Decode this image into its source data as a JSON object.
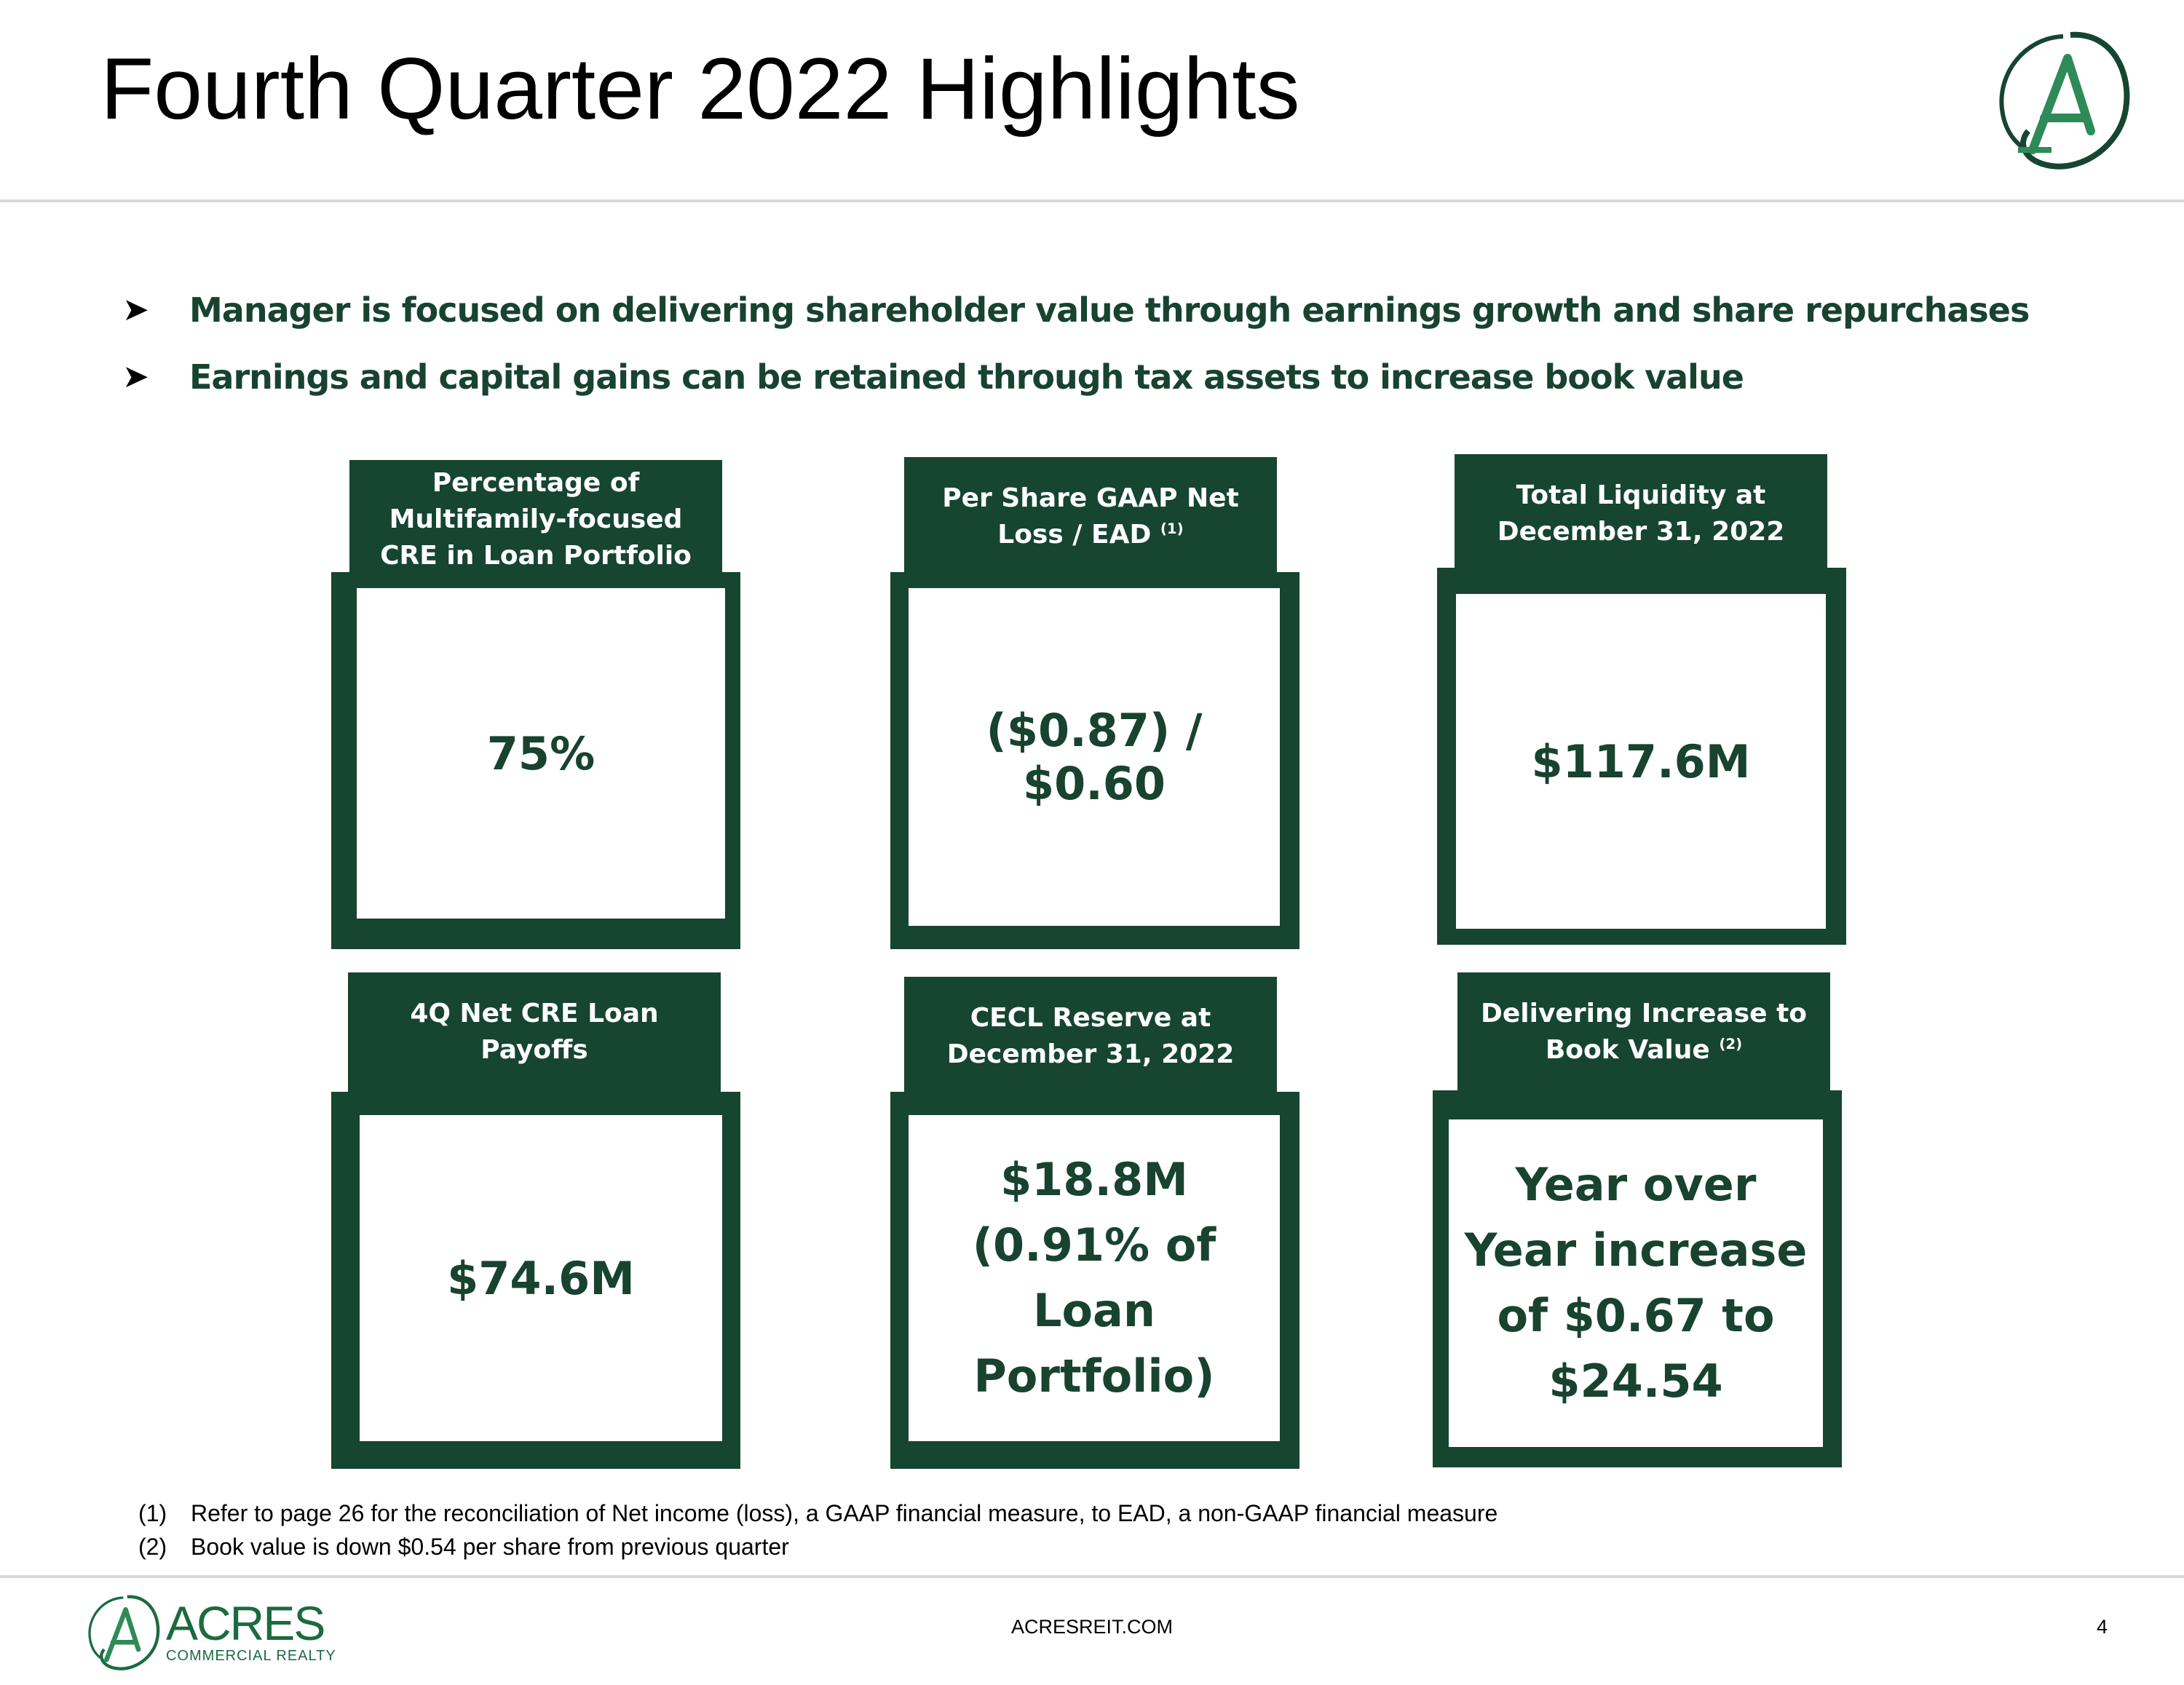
{
  "header": {
    "title": "Fourth Quarter 2022 Highlights"
  },
  "bullets": [
    {
      "text": "Manager is focused on delivering shareholder value through earnings growth and share repurchases"
    },
    {
      "text": "Earnings and capital gains can be retained through tax assets to increase book value"
    }
  ],
  "cards": [
    {
      "header": "Percentage of Multifamily-focused CRE in Loan Portfolio",
      "value": "75%"
    },
    {
      "header": "Per Share GAAP Net Loss / EAD",
      "header_sup": "(1)",
      "value": "($0.87) / $0.60"
    },
    {
      "header": "Total Liquidity at December 31, 2022",
      "value": "$117.6M"
    },
    {
      "header": "4Q Net CRE Loan Payoffs",
      "value": "$74.6M"
    },
    {
      "header": "CECL Reserve at December 31, 2022",
      "value": "$18.8M (0.91% of Loan Portfolio)"
    },
    {
      "header": "Delivering Increase to Book Value",
      "header_sup": "(2)",
      "value": "Year over Year increase of $0.67 to $24.54"
    }
  ],
  "footnotes": [
    {
      "num": "(1)",
      "text": "Refer to page 26 for the reconciliation of Net income (loss), a GAAP financial measure, to EAD, a non-GAAP financial measure"
    },
    {
      "num": "(2)",
      "text": "Book value is down $0.54 per share from previous quarter"
    }
  ],
  "footer": {
    "logo_name": "ACRES",
    "logo_tagline": "COMMERCIAL REALTY",
    "website": "ACRESREIT.COM",
    "page_number": "4"
  },
  "colors": {
    "brand_green": "#164530",
    "logo_green": "#1b6b40"
  },
  "icons": {
    "bullet": "arrowhead-bullet-icon",
    "logo": "acres-a-logo-icon"
  }
}
